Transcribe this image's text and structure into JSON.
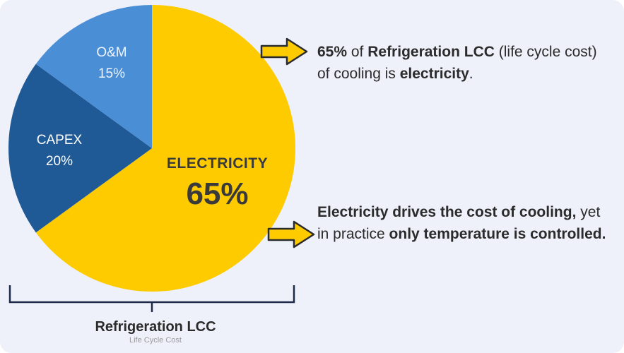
{
  "chart_data": {
    "type": "pie",
    "slices": [
      {
        "label": "ELECTRICITY",
        "percent": "65%",
        "value": 65,
        "color": "#fdcb00"
      },
      {
        "label": "CAPEX",
        "percent": "20%",
        "value": 20,
        "color": "#1f5a96"
      },
      {
        "label": "O&M",
        "percent": "15%",
        "value": 15,
        "color": "#4a8ed6"
      }
    ],
    "caption": {
      "title": "Refrigeration LCC",
      "subtitle": "Life Cycle Cost"
    }
  },
  "notes": {
    "first": {
      "pct": "65%",
      "t1": " of ",
      "b1": "Refrigeration LCC",
      "t2": " (life cycle cost) of cooling is ",
      "b2": "electricity",
      "t3": "."
    },
    "second": {
      "b1": "Electricity drives the cost of cooling,",
      "t1": " yet in practice ",
      "b2": "only temperature is controlled."
    }
  },
  "colors": {
    "arrow_fill": "#fdcb00",
    "arrow_stroke": "#2b2b2b",
    "bracket": "#1c2b4a"
  },
  "icons": {
    "arrow": "right-arrow-icon"
  }
}
